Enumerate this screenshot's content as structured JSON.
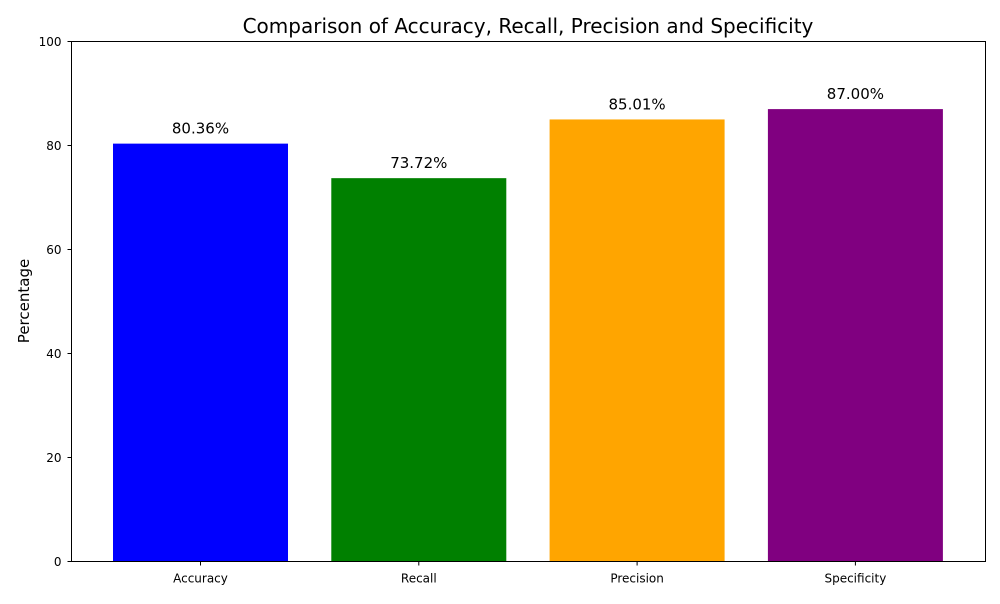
{
  "chart_data": {
    "type": "bar",
    "title": "Comparison of Accuracy, Recall, Precision and Specificity",
    "xlabel": "",
    "ylabel": "Percentage",
    "categories": [
      "Accuracy",
      "Recall",
      "Precision",
      "Specificity"
    ],
    "values": [
      80.36,
      73.72,
      85.01,
      87.0
    ],
    "data_labels": [
      "80.36%",
      "73.72%",
      "85.01%",
      "87.00%"
    ],
    "colors": [
      "#0000ff",
      "#008000",
      "#ffa500",
      "#800080"
    ],
    "ylim": [
      0,
      100
    ],
    "yticks": [
      0,
      20,
      40,
      60,
      80,
      100
    ],
    "grid": false,
    "legend": "none"
  }
}
